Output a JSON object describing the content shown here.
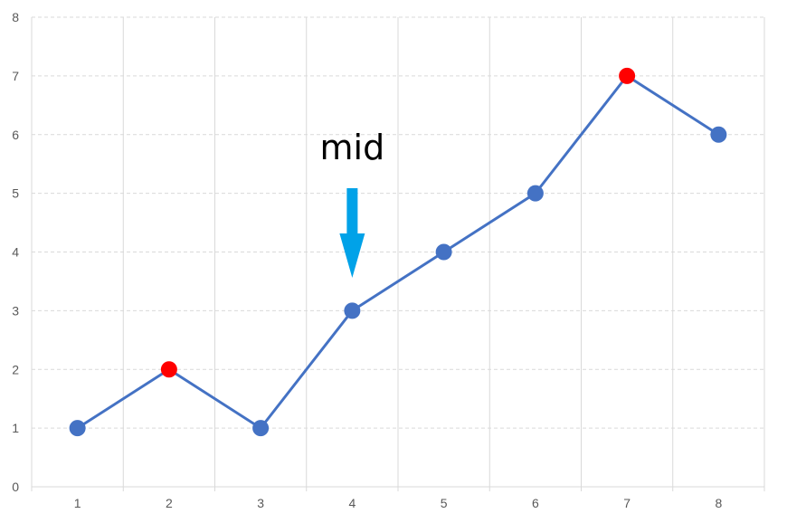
{
  "chart_data": {
    "type": "line",
    "x": [
      1,
      2,
      3,
      4,
      5,
      6,
      7,
      8
    ],
    "series": [
      {
        "values": [
          1,
          2,
          1,
          3,
          4,
          5,
          7,
          6
        ]
      }
    ],
    "highlighted_x": [
      2,
      7
    ],
    "x_ticks": [
      "1",
      "2",
      "3",
      "4",
      "5",
      "6",
      "7",
      "8"
    ],
    "y_ticks": [
      "0",
      "1",
      "2",
      "3",
      "4",
      "5",
      "6",
      "7",
      "8"
    ],
    "ylim": [
      0,
      8
    ],
    "xlim": [
      0.5,
      8.5
    ],
    "grid": "on",
    "legend": "none",
    "annotation": {
      "text": "mid",
      "x": 4,
      "marker": "down-arrow"
    },
    "colors": {
      "line": "#4472C4",
      "point": "#4472C4",
      "highlight": "#FF0000",
      "arrow": "#00A2E8",
      "grid": "#D9D9D9"
    }
  }
}
